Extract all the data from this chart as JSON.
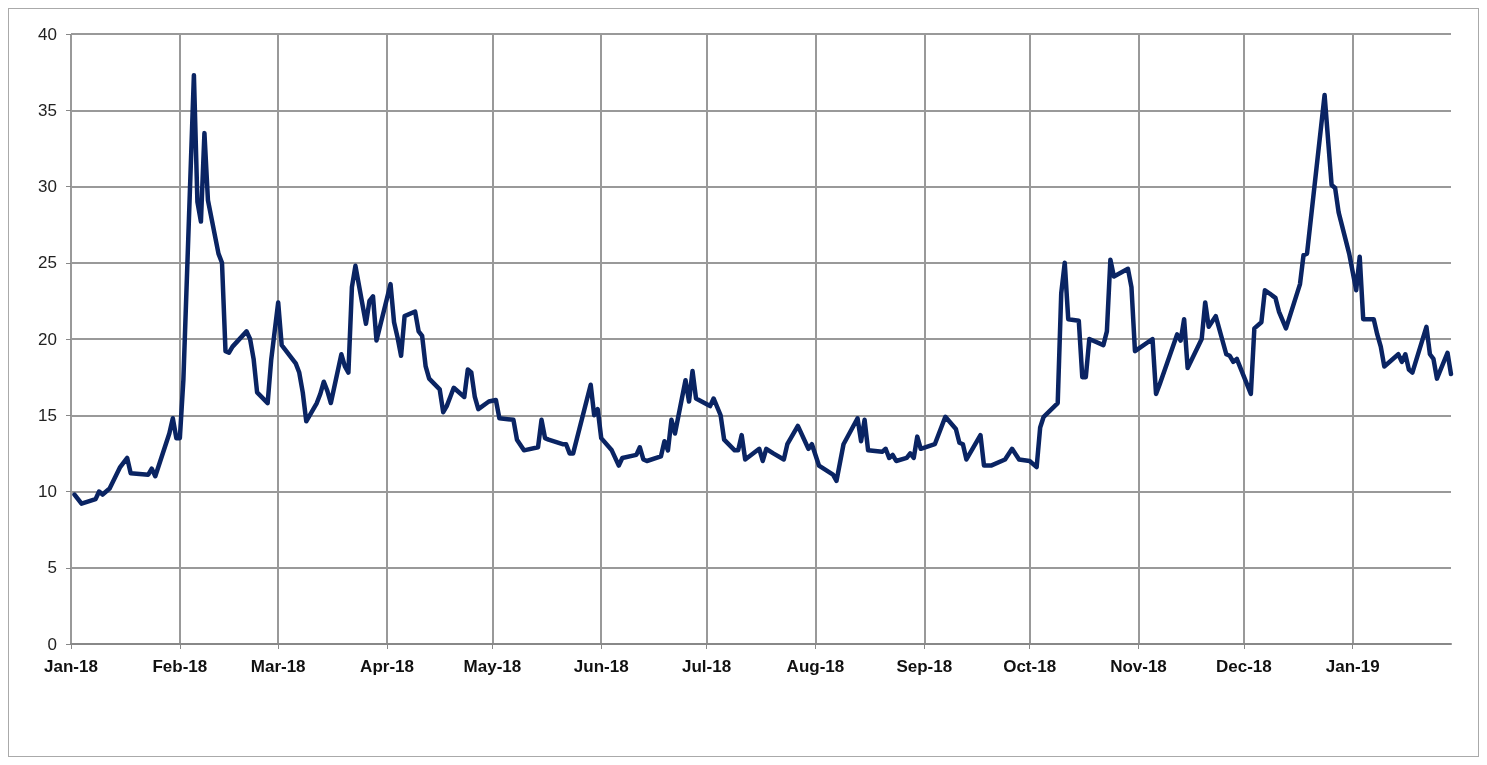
{
  "chart_data": {
    "type": "line",
    "line_style": "solid",
    "marker": "none",
    "grid": true,
    "xlim": [
      "2018-01-01",
      "2019-01-29"
    ],
    "xticks": [
      {
        "value": "2018-01-01",
        "label": "Jan-18"
      },
      {
        "value": "2018-02-01",
        "label": "Feb-18"
      },
      {
        "value": "2018-03-01",
        "label": "Mar-18"
      },
      {
        "value": "2018-04-01",
        "label": "Apr-18"
      },
      {
        "value": "2018-05-01",
        "label": "May-18"
      },
      {
        "value": "2018-06-01",
        "label": "Jun-18"
      },
      {
        "value": "2018-07-01",
        "label": "Jul-18"
      },
      {
        "value": "2018-08-01",
        "label": "Aug-18"
      },
      {
        "value": "2018-09-01",
        "label": "Sep-18"
      },
      {
        "value": "2018-10-01",
        "label": "Oct-18"
      },
      {
        "value": "2018-11-01",
        "label": "Nov-18"
      },
      {
        "value": "2018-12-01",
        "label": "Dec-18"
      },
      {
        "value": "2019-01-01",
        "label": "Jan-19"
      }
    ],
    "ylim": [
      0,
      40
    ],
    "yticks": [
      0,
      5,
      10,
      15,
      20,
      25,
      30,
      35,
      40
    ],
    "series": [
      {
        "color": "#0a2463",
        "x": [
          "2018-01-02",
          "2018-01-04",
          "2018-01-08",
          "2018-01-09",
          "2018-01-10",
          "2018-01-12",
          "2018-01-15",
          "2018-01-17",
          "2018-01-18",
          "2018-01-23",
          "2018-01-24",
          "2018-01-25",
          "2018-01-29",
          "2018-01-30",
          "2018-01-31",
          "2018-02-01",
          "2018-02-02",
          "2018-02-05",
          "2018-02-06",
          "2018-02-07",
          "2018-02-08",
          "2018-02-09",
          "2018-02-12",
          "2018-02-13",
          "2018-02-14",
          "2018-02-15",
          "2018-02-16",
          "2018-02-20",
          "2018-02-21",
          "2018-02-22",
          "2018-02-23",
          "2018-02-26",
          "2018-02-27",
          "2018-03-01",
          "2018-03-02",
          "2018-03-05",
          "2018-03-06",
          "2018-03-07",
          "2018-03-08",
          "2018-03-09",
          "2018-03-12",
          "2018-03-13",
          "2018-03-14",
          "2018-03-15",
          "2018-03-16",
          "2018-03-19",
          "2018-03-20",
          "2018-03-21",
          "2018-03-22",
          "2018-03-23",
          "2018-03-26",
          "2018-03-27",
          "2018-03-28",
          "2018-03-29",
          "2018-04-02",
          "2018-04-03",
          "2018-04-04",
          "2018-04-05",
          "2018-04-06",
          "2018-04-09",
          "2018-04-10",
          "2018-04-11",
          "2018-04-12",
          "2018-04-13",
          "2018-04-16",
          "2018-04-17",
          "2018-04-18",
          "2018-04-19",
          "2018-04-20",
          "2018-04-23",
          "2018-04-24",
          "2018-04-25",
          "2018-04-26",
          "2018-04-27",
          "2018-04-30",
          "2018-05-02",
          "2018-05-03",
          "2018-05-07",
          "2018-05-08",
          "2018-05-10",
          "2018-05-14",
          "2018-05-15",
          "2018-05-16",
          "2018-05-17",
          "2018-05-21",
          "2018-05-22",
          "2018-05-23",
          "2018-05-24",
          "2018-05-29",
          "2018-05-30",
          "2018-05-31",
          "2018-06-01",
          "2018-06-04",
          "2018-06-06",
          "2018-06-07",
          "2018-06-11",
          "2018-06-12",
          "2018-06-13",
          "2018-06-14",
          "2018-06-18",
          "2018-06-19",
          "2018-06-20",
          "2018-06-21",
          "2018-06-22",
          "2018-06-25",
          "2018-06-26",
          "2018-06-27",
          "2018-06-28",
          "2018-07-02",
          "2018-07-03",
          "2018-07-05",
          "2018-07-06",
          "2018-07-09",
          "2018-07-10",
          "2018-07-11",
          "2018-07-12",
          "2018-07-16",
          "2018-07-17",
          "2018-07-18",
          "2018-07-20",
          "2018-07-23",
          "2018-07-24",
          "2018-07-27",
          "2018-07-30",
          "2018-07-31",
          "2018-08-02",
          "2018-08-06",
          "2018-08-07",
          "2018-08-09",
          "2018-08-13",
          "2018-08-14",
          "2018-08-15",
          "2018-08-16",
          "2018-08-20",
          "2018-08-21",
          "2018-08-22",
          "2018-08-23",
          "2018-08-24",
          "2018-08-27",
          "2018-08-28",
          "2018-08-29",
          "2018-08-30",
          "2018-08-31",
          "2018-09-04",
          "2018-09-07",
          "2018-09-10",
          "2018-09-11",
          "2018-09-12",
          "2018-09-13",
          "2018-09-17",
          "2018-09-18",
          "2018-09-20",
          "2018-09-24",
          "2018-09-26",
          "2018-09-28",
          "2018-10-01",
          "2018-10-03",
          "2018-10-04",
          "2018-10-05",
          "2018-10-09",
          "2018-10-10",
          "2018-10-11",
          "2018-10-12",
          "2018-10-15",
          "2018-10-16",
          "2018-10-17",
          "2018-10-18",
          "2018-10-22",
          "2018-10-23",
          "2018-10-24",
          "2018-10-25",
          "2018-10-29",
          "2018-10-30",
          "2018-10-31",
          "2018-11-05",
          "2018-11-06",
          "2018-11-07",
          "2018-11-12",
          "2018-11-13",
          "2018-11-14",
          "2018-11-15",
          "2018-11-19",
          "2018-11-20",
          "2018-11-21",
          "2018-11-23",
          "2018-11-26",
          "2018-11-27",
          "2018-11-28",
          "2018-11-29",
          "2018-12-03",
          "2018-12-04",
          "2018-12-06",
          "2018-12-07",
          "2018-12-10",
          "2018-12-11",
          "2018-12-13",
          "2018-12-17",
          "2018-12-18",
          "2018-12-19",
          "2018-12-24",
          "2018-12-26",
          "2018-12-27",
          "2018-12-28",
          "2018-12-31",
          "2019-01-02",
          "2019-01-03",
          "2019-01-04",
          "2019-01-07",
          "2019-01-08",
          "2019-01-09",
          "2019-01-10",
          "2019-01-14",
          "2019-01-15",
          "2019-01-16",
          "2019-01-17",
          "2019-01-18",
          "2019-01-22",
          "2019-01-23",
          "2019-01-24",
          "2019-01-25",
          "2019-01-28",
          "2019-01-29"
        ],
        "values": [
          9.8,
          9.2,
          9.5,
          10.0,
          9.8,
          10.2,
          11.6,
          12.2,
          11.2,
          11.1,
          11.5,
          11.0,
          13.8,
          14.8,
          13.5,
          13.5,
          17.3,
          37.3,
          29.0,
          27.7,
          33.5,
          29.1,
          25.6,
          25.0,
          19.2,
          19.1,
          19.5,
          20.5,
          20.0,
          18.7,
          16.5,
          15.8,
          18.6,
          22.4,
          19.6,
          18.7,
          18.4,
          17.8,
          16.5,
          14.6,
          15.8,
          16.4,
          17.2,
          16.6,
          15.8,
          19.0,
          18.2,
          17.8,
          23.4,
          24.8,
          21.0,
          22.5,
          22.8,
          19.9,
          23.6,
          21.1,
          20.1,
          18.9,
          21.5,
          21.8,
          20.5,
          20.2,
          18.2,
          17.4,
          16.7,
          15.2,
          15.6,
          16.2,
          16.8,
          16.2,
          18.0,
          17.8,
          16.2,
          15.4,
          15.9,
          16.0,
          14.8,
          14.7,
          13.4,
          12.7,
          12.9,
          14.7,
          13.5,
          13.4,
          13.1,
          13.1,
          12.5,
          12.5,
          17.0,
          15.0,
          15.4,
          13.5,
          12.7,
          11.7,
          12.2,
          12.4,
          12.9,
          12.1,
          12.0,
          12.3,
          13.3,
          12.7,
          14.7,
          13.8,
          17.3,
          15.9,
          17.9,
          16.1,
          15.6,
          16.1,
          15.0,
          13.4,
          12.7,
          12.7,
          13.7,
          12.1,
          12.8,
          12.0,
          12.8,
          12.5,
          12.1,
          13.1,
          14.3,
          12.8,
          13.1,
          11.7,
          11.1,
          10.7,
          13.1,
          14.8,
          13.3,
          14.7,
          12.7,
          12.6,
          12.8,
          12.2,
          12.4,
          12.0,
          12.2,
          12.5,
          12.2,
          13.6,
          12.8,
          13.1,
          14.9,
          14.1,
          13.2,
          13.1,
          12.1,
          13.7,
          11.7,
          11.7,
          12.1,
          12.8,
          12.1,
          12.0,
          11.6,
          14.2,
          14.9,
          15.8,
          23.0,
          25.0,
          21.3,
          21.2,
          17.5,
          17.5,
          20.0,
          19.6,
          20.5,
          25.2,
          24.1,
          24.6,
          23.4,
          19.2,
          20.0,
          16.4,
          17.0,
          20.3,
          19.9,
          21.3,
          18.1,
          20.0,
          22.4,
          20.8,
          21.5,
          19.0,
          18.9,
          18.5,
          18.7,
          16.4,
          20.7,
          21.1,
          23.2,
          22.7,
          21.8,
          20.7,
          23.6,
          25.5,
          25.6,
          36.0,
          30.1,
          29.9,
          28.3,
          25.6,
          23.2,
          25.4,
          21.3,
          21.3,
          20.3,
          19.5,
          18.2,
          19.0,
          18.5,
          19.0,
          18.0,
          17.8,
          20.8,
          19.0,
          18.7,
          17.4,
          19.1,
          17.7
        ]
      }
    ]
  }
}
